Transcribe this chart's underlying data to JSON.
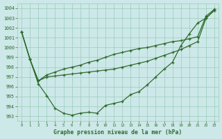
{
  "title": "Graphe pression niveau de la mer (hPa)",
  "bg": "#cde8e8",
  "grid_color": "#99ccbb",
  "line_color": "#2d6a2d",
  "xlim": [
    -0.5,
    23.5
  ],
  "ylim": [
    992.5,
    1004.5
  ],
  "yticks": [
    993,
    994,
    995,
    996,
    997,
    998,
    999,
    1000,
    1001,
    1002,
    1003,
    1004
  ],
  "xticks": [
    0,
    1,
    2,
    3,
    4,
    5,
    6,
    7,
    8,
    9,
    10,
    11,
    12,
    13,
    14,
    15,
    16,
    17,
    18,
    19,
    20,
    21,
    22,
    23
  ],
  "series1": [
    1001.6,
    998.8,
    996.3,
    995.1,
    993.8,
    993.3,
    993.1,
    993.3,
    993.4,
    993.3,
    994.1,
    994.3,
    994.5,
    995.2,
    995.5,
    996.2,
    997.0,
    997.8,
    998.5,
    1000.2,
    1001.4,
    1002.5,
    1003.0,
    1003.8
  ],
  "series2": [
    1001.6,
    998.8,
    996.6,
    997.0,
    997.1,
    997.2,
    997.3,
    997.4,
    997.5,
    997.6,
    997.7,
    997.8,
    998.0,
    998.2,
    998.4,
    998.6,
    998.9,
    999.2,
    999.5,
    999.8,
    1000.2,
    1000.6,
    1003.0,
    1003.8
  ],
  "series3": [
    1001.6,
    998.8,
    996.6,
    997.2,
    997.5,
    997.8,
    998.0,
    998.2,
    998.5,
    998.7,
    999.0,
    999.3,
    999.5,
    999.7,
    999.9,
    1000.0,
    1000.2,
    1000.4,
    1000.6,
    1000.7,
    1000.9,
    1001.1,
    1003.2,
    1003.9
  ],
  "figsize": [
    3.2,
    2.0
  ],
  "dpi": 100
}
